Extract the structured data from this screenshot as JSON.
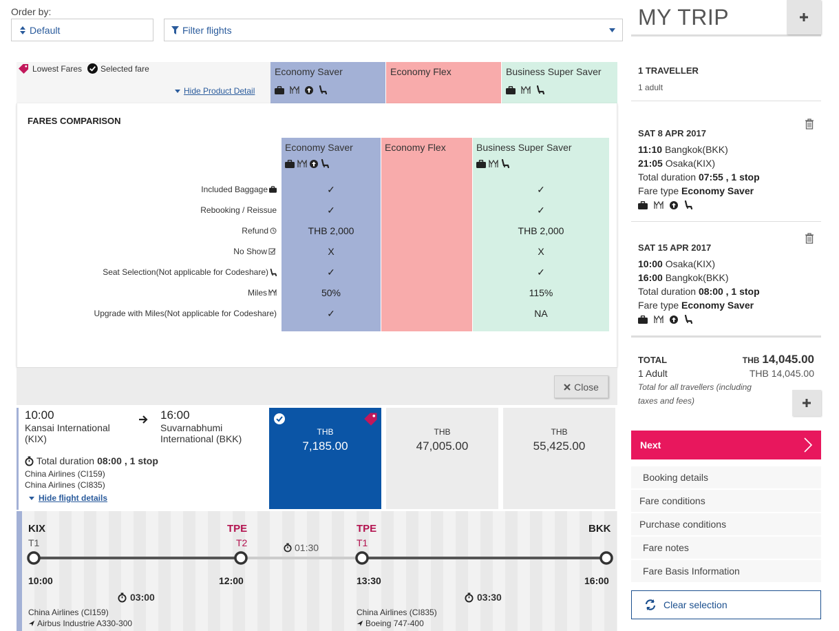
{
  "order": {
    "label": "Order by:",
    "value": "Default"
  },
  "filter": {
    "placeholder": "Filter flights"
  },
  "legend": {
    "lowest": "Lowest Fares",
    "selected": "Selected fare",
    "hide_product": "Hide Product Detail"
  },
  "fares": [
    {
      "name": "Economy Saver",
      "color": "#a3b1d6"
    },
    {
      "name": "Economy Flex",
      "color": "#f8abab"
    },
    {
      "name": "Business Super Saver",
      "color": "#d5f0e4"
    }
  ],
  "comparison": {
    "title": "FARES COMPARISON",
    "rows": [
      {
        "label": "Included Baggage",
        "saver": "✓",
        "business": "✓"
      },
      {
        "label": "Rebooking / Reissue",
        "saver": "✓",
        "business": "✓"
      },
      {
        "label": "Refund",
        "saver": "THB 2,000",
        "business": "THB 2,000"
      },
      {
        "label": "No Show",
        "saver": "X",
        "business": "X"
      },
      {
        "label": "Seat Selection(Not applicable for Codeshare)",
        "saver": "✓",
        "business": "✓"
      },
      {
        "label": "Miles",
        "saver": "50%",
        "business": "115%"
      },
      {
        "label": "Upgrade with Miles(Not applicable for Codeshare)",
        "saver": "✓",
        "business": "NA"
      }
    ],
    "close": "Close"
  },
  "flight": {
    "dep_time": "10:00",
    "dep_place": "Kansai International (KIX)",
    "arr_time": "16:00",
    "arr_place": "Suvarnabhumi International (BKK)",
    "duration_label": "Total duration",
    "duration": "08:00",
    "stops": ", 1 stop",
    "carrier1": "China Airlines (CI159)",
    "carrier2": "China Airlines (CI835)",
    "hide_details": "Hide flight details"
  },
  "prices": [
    {
      "cur": "THB",
      "amount": "7,185.00"
    },
    {
      "cur": "THB",
      "amount": "47,005.00"
    },
    {
      "cur": "THB",
      "amount": "55,425.00"
    }
  ],
  "detail": {
    "seg1": {
      "from": "KIX",
      "from_term": "T1",
      "to": "TPE",
      "to_term": "T2",
      "dep": "10:00",
      "arr": "12:00",
      "dur": "03:00",
      "carrier": "China Airlines (CI159)",
      "aircraft": "Airbus Industrie A330-300"
    },
    "layover": "01:30",
    "seg2": {
      "from": "TPE",
      "from_term": "T1",
      "to": "BKK",
      "dep": "13:30",
      "arr": "16:00",
      "dur": "03:30",
      "carrier": "China Airlines (CI835)",
      "aircraft": "Boeing 747-400"
    }
  },
  "sidebar": {
    "title": "MY TRIP",
    "travellers": "1 TRAVELLER",
    "travellers_sub": "1 adult",
    "out": {
      "date": "SAT 8 APR 2017",
      "dep_time": "11:10",
      "dep_city": "Bangkok(BKK)",
      "arr_time": "21:05",
      "arr_city": "Osaka(KIX)",
      "dur_label": "Total duration",
      "dur": "07:55 , 1 stop",
      "fare_label": "Fare type",
      "fare": "Economy Saver"
    },
    "ret": {
      "date": "SAT 15 APR 2017",
      "dep_time": "10:00",
      "dep_city": "Osaka(KIX)",
      "arr_time": "16:00",
      "arr_city": "Bangkok(BKK)",
      "dur_label": "Total duration",
      "dur": "08:00 , 1 stop",
      "fare_label": "Fare type",
      "fare": "Economy Saver"
    },
    "total_label": "TOTAL",
    "total_cur": "THB",
    "total": "14,045.00",
    "adult_label": "1 Adult",
    "adult_price": "THB 14,045.00",
    "total_note": "Total for all travellers (including taxes and fees)",
    "next": "Next",
    "links": [
      "Booking details",
      "Fare conditions",
      "Purchase conditions",
      "Fare notes",
      "Fare Basis Information"
    ],
    "clear": "Clear selection"
  },
  "colors": {
    "accent": "#e8175d",
    "selected_price": "#0b55a6",
    "link": "#2a5b9c",
    "tag": "#c2185b"
  }
}
